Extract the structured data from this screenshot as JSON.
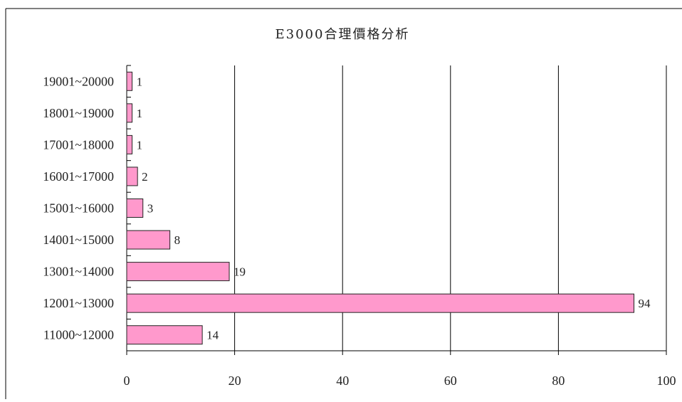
{
  "chart_data": {
    "type": "bar",
    "orientation": "horizontal",
    "title": "E3000合理價格分析",
    "xlabel": "",
    "ylabel": "",
    "categories": [
      "11000~12000",
      "12001~13000",
      "13001~14000",
      "14001~15000",
      "15001~16000",
      "16001~17000",
      "17001~18000",
      "18001~19000",
      "19001~20000"
    ],
    "values": [
      14,
      94,
      19,
      8,
      3,
      2,
      1,
      1,
      1
    ],
    "xlim": [
      0,
      100
    ],
    "x_ticks": [
      "0",
      "20",
      "40",
      "60",
      "80",
      "100"
    ],
    "grid": "vertical",
    "legend": "none",
    "colors": {
      "bar_fill": "#ff99cc",
      "bar_stroke": "#222222",
      "grid": "#000000"
    }
  }
}
